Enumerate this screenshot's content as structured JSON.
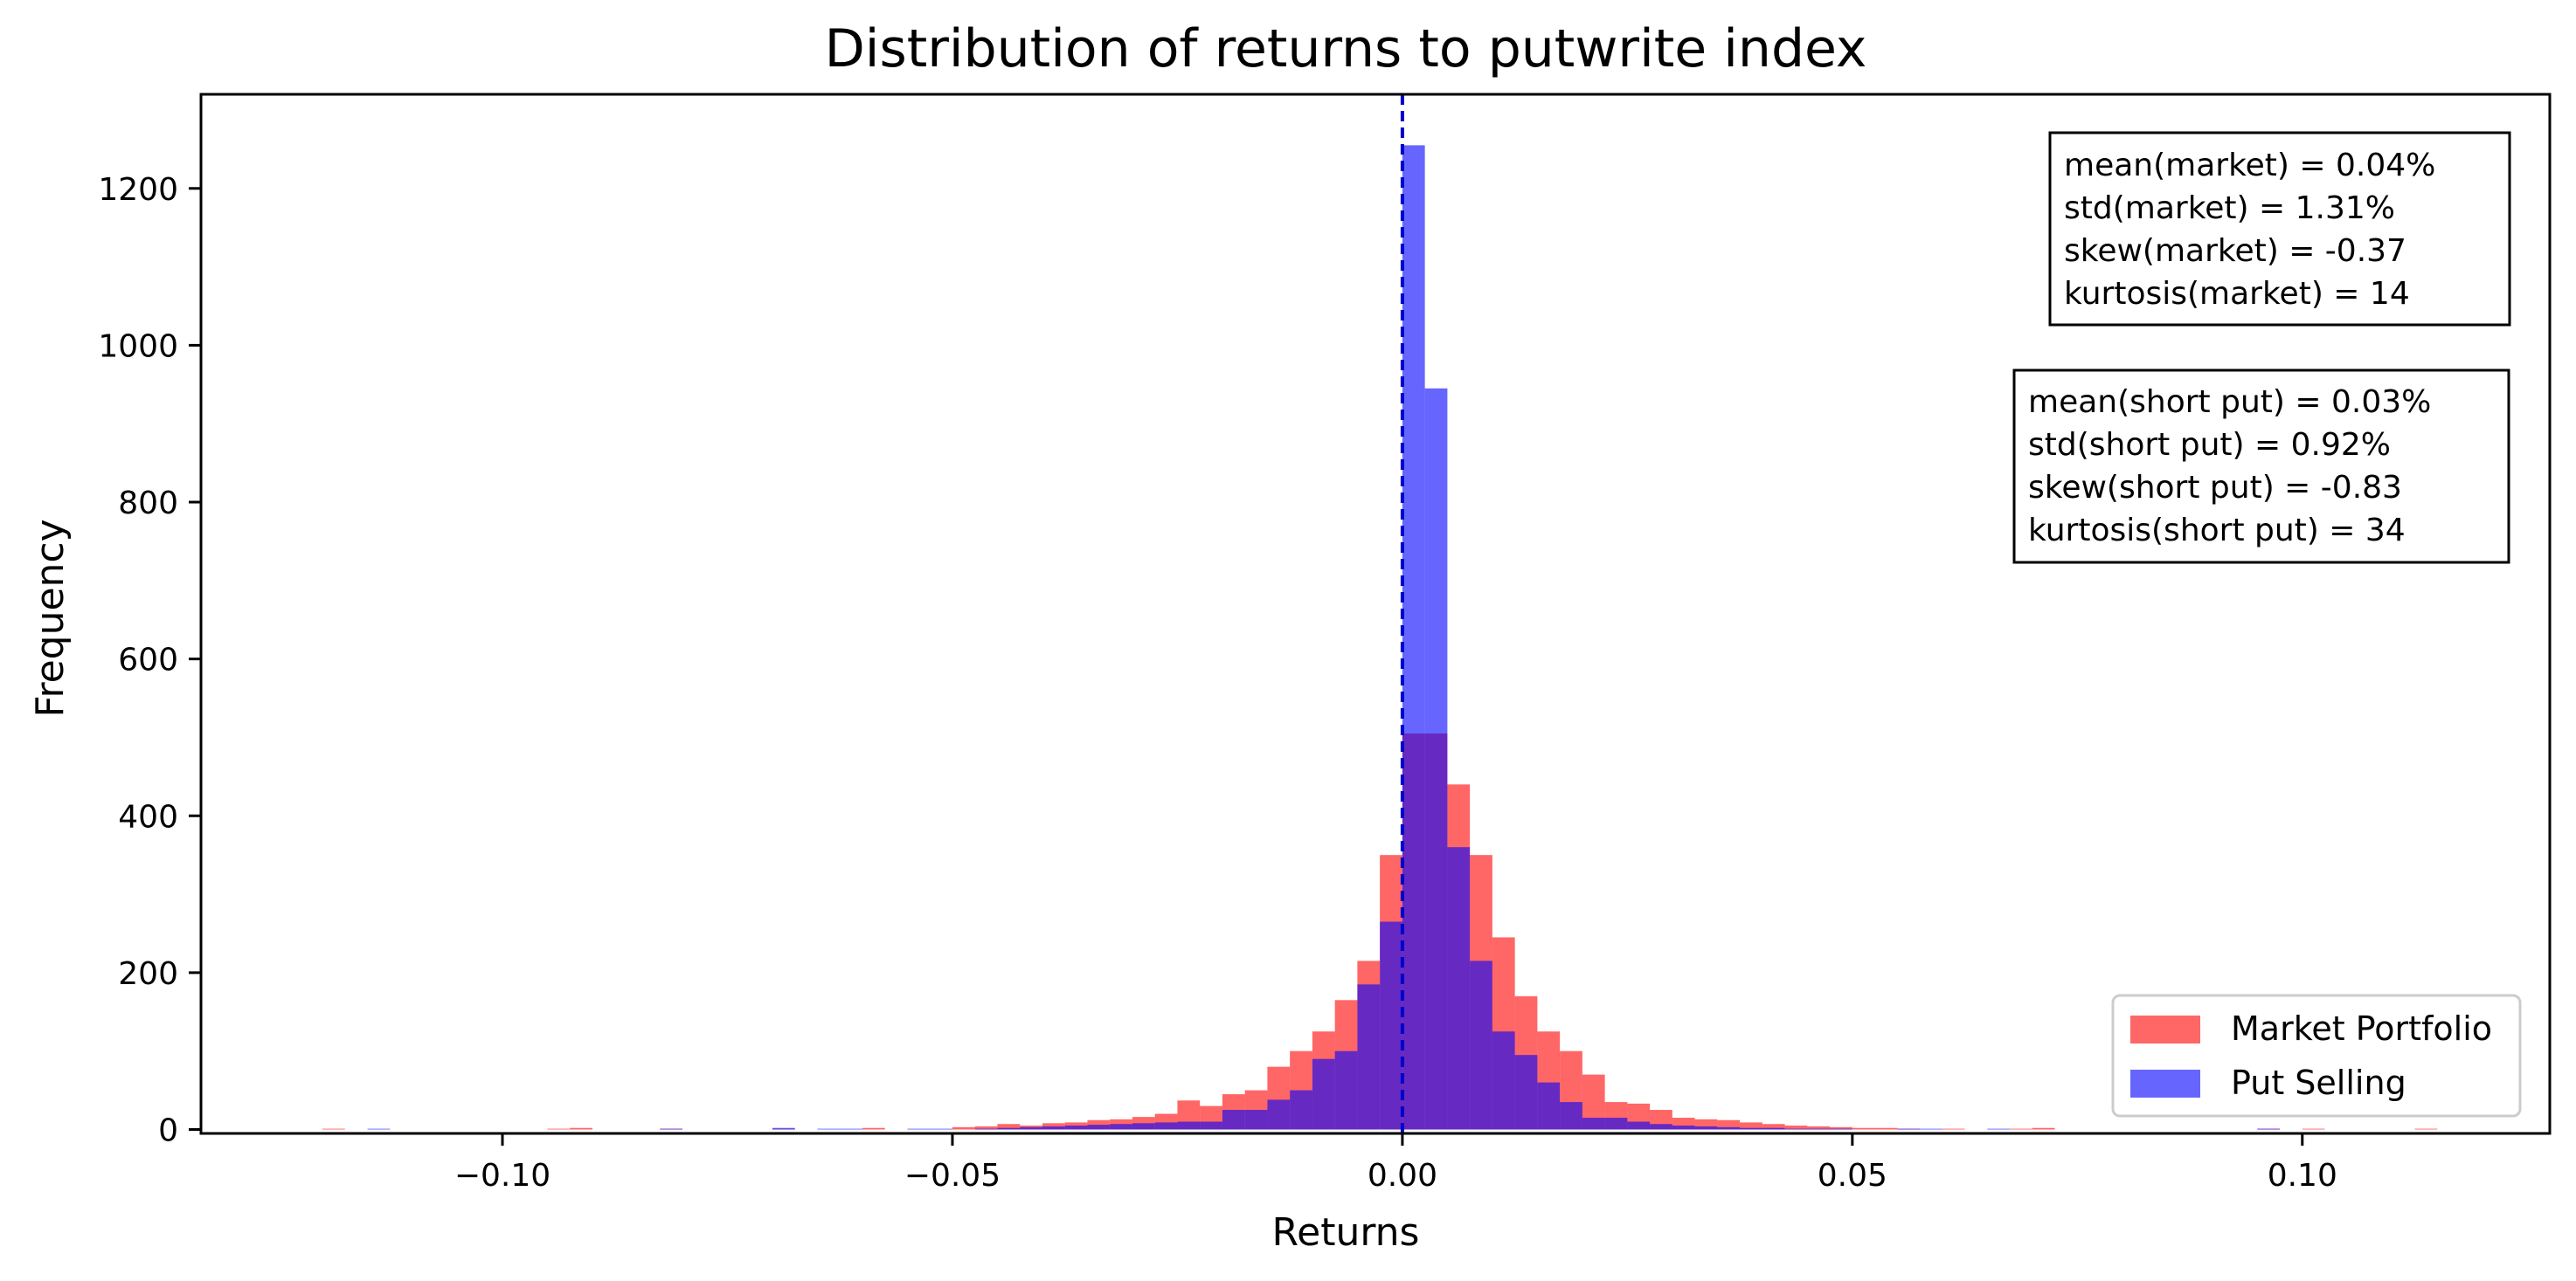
{
  "chart_data": {
    "type": "histogram",
    "title": "Distribution of returns to putwrite index",
    "xlabel": "Returns",
    "ylabel": "Frequency",
    "xlim": [
      -0.1335,
      0.1275
    ],
    "ylim": [
      -5,
      1320
    ],
    "xticks": [
      -0.1,
      -0.05,
      0.0,
      0.05,
      0.1
    ],
    "xtick_labels": [
      "−0.10",
      "−0.05",
      "0.00",
      "0.05",
      "0.10"
    ],
    "yticks": [
      0,
      200,
      400,
      600,
      800,
      1000,
      1200
    ],
    "ytick_labels": [
      "0",
      "200",
      "400",
      "600",
      "800",
      "1000",
      "1200"
    ],
    "vline": {
      "x": 0.0,
      "style": "dashed",
      "color": "#0000cc"
    },
    "legend": {
      "position": "lower-right",
      "entries": [
        "Market Portfolio",
        "Put Selling"
      ]
    },
    "series": [
      {
        "name": "Market Portfolio",
        "color": "#ff0000",
        "alpha": 0.6,
        "bin_width": 0.0025,
        "bins": [
          [
            -0.12,
            1
          ],
          [
            -0.095,
            1
          ],
          [
            -0.0925,
            2
          ],
          [
            -0.0825,
            1
          ],
          [
            -0.07,
            1
          ],
          [
            -0.06,
            2
          ],
          [
            -0.05,
            3
          ],
          [
            -0.0475,
            4
          ],
          [
            -0.045,
            7
          ],
          [
            -0.0425,
            5
          ],
          [
            -0.04,
            8
          ],
          [
            -0.0375,
            9
          ],
          [
            -0.035,
            12
          ],
          [
            -0.0325,
            13
          ],
          [
            -0.03,
            16
          ],
          [
            -0.0275,
            20
          ],
          [
            -0.025,
            37
          ],
          [
            -0.0225,
            30
          ],
          [
            -0.02,
            45
          ],
          [
            -0.0175,
            50
          ],
          [
            -0.015,
            80
          ],
          [
            -0.0125,
            100
          ],
          [
            -0.01,
            125
          ],
          [
            -0.0075,
            165
          ],
          [
            -0.005,
            215
          ],
          [
            -0.0025,
            350
          ],
          [
            0.0,
            505
          ],
          [
            0.0025,
            505
          ],
          [
            0.005,
            440
          ],
          [
            0.0075,
            350
          ],
          [
            0.01,
            245
          ],
          [
            0.0125,
            170
          ],
          [
            0.015,
            125
          ],
          [
            0.0175,
            100
          ],
          [
            0.02,
            70
          ],
          [
            0.0225,
            35
          ],
          [
            0.025,
            33
          ],
          [
            0.0275,
            25
          ],
          [
            0.03,
            15
          ],
          [
            0.0325,
            13
          ],
          [
            0.035,
            12
          ],
          [
            0.0375,
            9
          ],
          [
            0.04,
            7
          ],
          [
            0.0425,
            5
          ],
          [
            0.045,
            4
          ],
          [
            0.0475,
            3
          ],
          [
            0.05,
            2
          ],
          [
            0.0525,
            2
          ],
          [
            0.055,
            1
          ],
          [
            0.06,
            1
          ],
          [
            0.0675,
            1
          ],
          [
            0.07,
            2
          ],
          [
            0.095,
            1
          ],
          [
            0.1,
            1
          ],
          [
            0.1125,
            1
          ]
        ]
      },
      {
        "name": "Put Selling",
        "color": "#0000ff",
        "alpha": 0.6,
        "bin_width": 0.0025,
        "bins": [
          [
            -0.115,
            1
          ],
          [
            -0.0825,
            1
          ],
          [
            -0.07,
            2
          ],
          [
            -0.065,
            1
          ],
          [
            -0.0625,
            1
          ],
          [
            -0.055,
            1
          ],
          [
            -0.0525,
            1
          ],
          [
            -0.0475,
            1
          ],
          [
            -0.045,
            2
          ],
          [
            -0.0425,
            3
          ],
          [
            -0.04,
            4
          ],
          [
            -0.0375,
            5
          ],
          [
            -0.035,
            6
          ],
          [
            -0.0325,
            7
          ],
          [
            -0.03,
            8
          ],
          [
            -0.0275,
            9
          ],
          [
            -0.025,
            10
          ],
          [
            -0.0225,
            10
          ],
          [
            -0.02,
            25
          ],
          [
            -0.0175,
            25
          ],
          [
            -0.015,
            38
          ],
          [
            -0.0125,
            50
          ],
          [
            -0.01,
            90
          ],
          [
            -0.0075,
            100
          ],
          [
            -0.005,
            185
          ],
          [
            -0.0025,
            265
          ],
          [
            0.0,
            1255
          ],
          [
            0.0025,
            945
          ],
          [
            0.005,
            360
          ],
          [
            0.0075,
            215
          ],
          [
            0.01,
            125
          ],
          [
            0.0125,
            95
          ],
          [
            0.015,
            60
          ],
          [
            0.0175,
            35
          ],
          [
            0.02,
            15
          ],
          [
            0.0225,
            15
          ],
          [
            0.025,
            10
          ],
          [
            0.0275,
            7
          ],
          [
            0.03,
            5
          ],
          [
            0.0325,
            4
          ],
          [
            0.035,
            3
          ],
          [
            0.0375,
            2
          ],
          [
            0.04,
            2
          ],
          [
            0.0425,
            1
          ],
          [
            0.045,
            1
          ],
          [
            0.0475,
            1
          ],
          [
            0.055,
            1
          ],
          [
            0.0575,
            1
          ],
          [
            0.065,
            1
          ],
          [
            0.095,
            1
          ]
        ]
      }
    ],
    "stats": [
      {
        "lines": [
          "mean(market) = 0.04%",
          "std(market) = 1.31%",
          "skew(market) = -0.37",
          "kurtosis(market) = 14"
        ]
      },
      {
        "lines": [
          "mean(short put) = 0.03%",
          "std(short put) = 0.92%",
          "skew(short put) = -0.83",
          "kurtosis(short put) = 34"
        ]
      }
    ]
  }
}
